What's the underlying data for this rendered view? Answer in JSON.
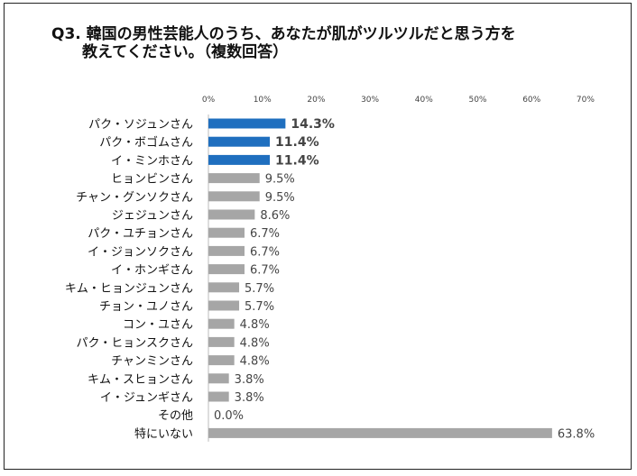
{
  "chart_data": {
    "type": "bar",
    "orientation": "horizontal",
    "title_line1": "Q3. 韓国の男性芸能人のうち、あなたが肌がツルツルだと思う方を",
    "title_line2": "教えてください。（複数回答）",
    "xlim": [
      0,
      70
    ],
    "tick_labels": [
      "0%",
      "10%",
      "20%",
      "30%",
      "40%",
      "50%",
      "60%",
      "70%"
    ],
    "tick_values": [
      0,
      10,
      20,
      30,
      40,
      50,
      60,
      70
    ],
    "categories": [
      "パク・ソジュンさん",
      "パク・ボゴムさん",
      "イ・ミンホさん",
      "ヒョンビンさん",
      "チャン・グンソクさん",
      "ジェジュンさん",
      "パク・ユチョンさん",
      "イ・ジョンソクさん",
      "イ・ホンギさん",
      "キム・ヒョンジュンさん",
      "チョン・ユノさん",
      "コン・ユさん",
      "パク・ヒョンスクさん",
      "チャンミンさん",
      "キム・スヒョンさん",
      "イ・ジュンギさん",
      "その他",
      "特にいない"
    ],
    "values": [
      14.3,
      11.4,
      11.4,
      9.5,
      9.5,
      8.6,
      6.7,
      6.7,
      6.7,
      5.7,
      5.7,
      4.8,
      4.8,
      4.8,
      3.8,
      3.8,
      0.0,
      63.8
    ],
    "value_labels": [
      "14.3%",
      "11.4%",
      "11.4%",
      "9.5%",
      "9.5%",
      "8.6%",
      "6.7%",
      "6.7%",
      "6.7%",
      "5.7%",
      "5.7%",
      "4.8%",
      "4.8%",
      "4.8%",
      "3.8%",
      "3.8%",
      "0.0%",
      "63.8%"
    ],
    "highlighted": [
      true,
      true,
      true,
      false,
      false,
      false,
      false,
      false,
      false,
      false,
      false,
      false,
      false,
      false,
      false,
      false,
      false,
      false
    ],
    "colors": {
      "highlight": "#1f6fbf",
      "normal": "#a6a6a6"
    }
  }
}
